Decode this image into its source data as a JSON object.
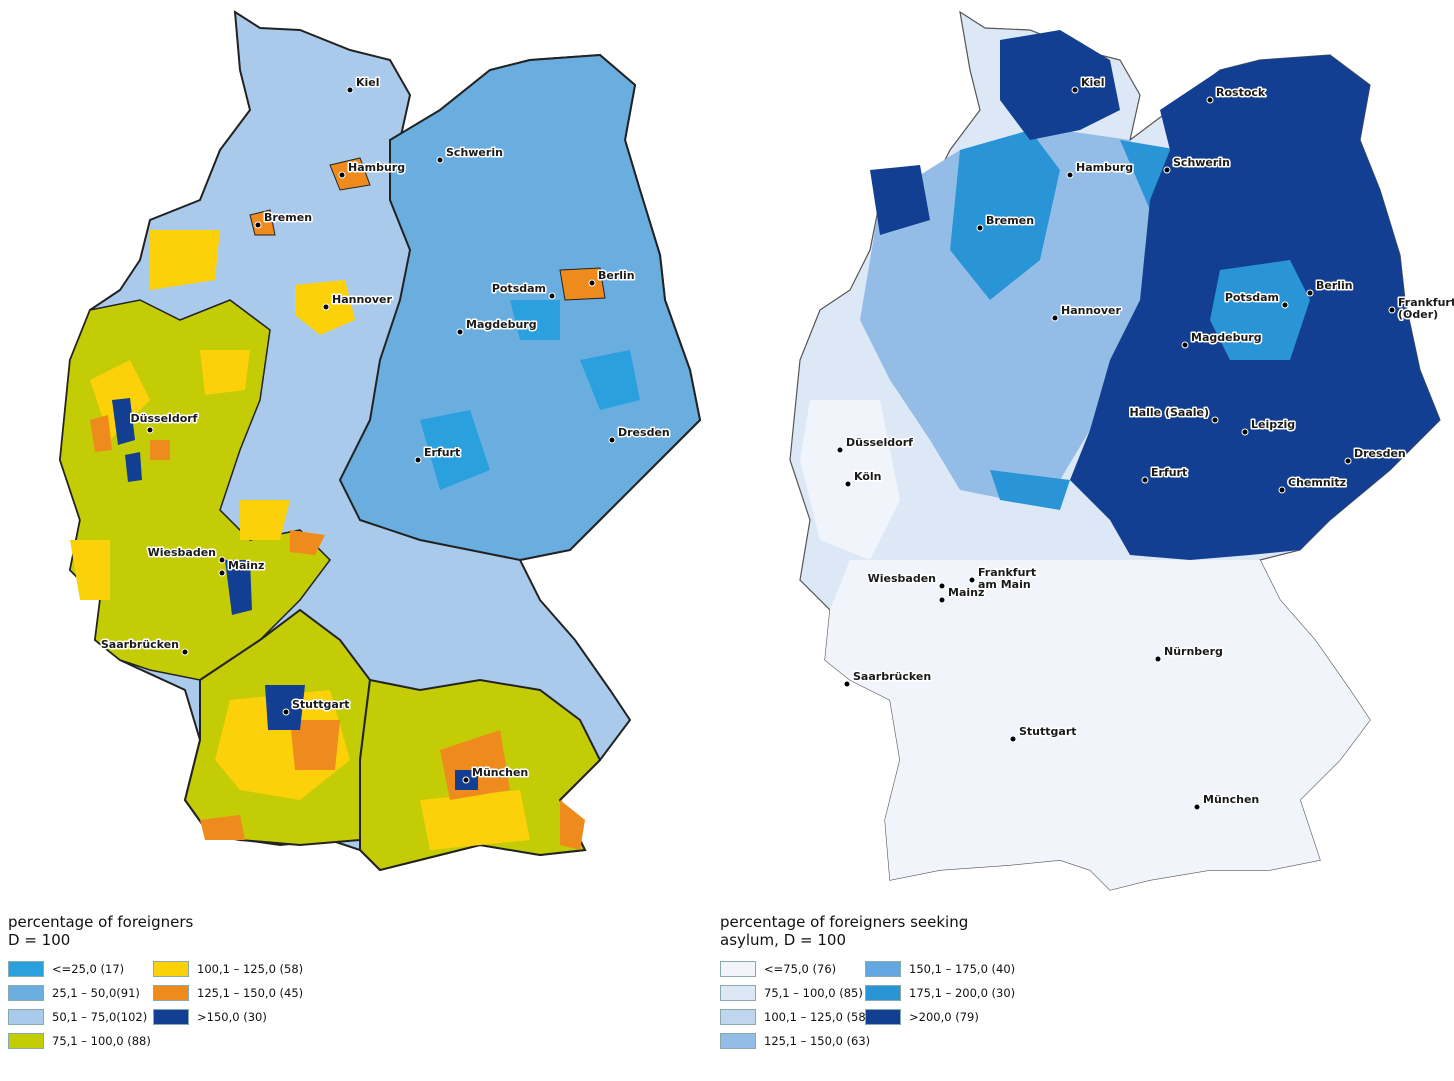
{
  "left_map": {
    "cities": [
      {
        "name": "Kiel"
      },
      {
        "name": "Hamburg"
      },
      {
        "name": "Schwerin"
      },
      {
        "name": "Bremen"
      },
      {
        "name": "Berlin"
      },
      {
        "name": "Potsdam"
      },
      {
        "name": "Hannover"
      },
      {
        "name": "Magdeburg"
      },
      {
        "name": "Düsseldorf"
      },
      {
        "name": "Erfurt"
      },
      {
        "name": "Dresden"
      },
      {
        "name": "Wiesbaden"
      },
      {
        "name": "Mainz"
      },
      {
        "name": "Saarbrücken"
      },
      {
        "name": "Stuttgart"
      },
      {
        "name": "München"
      }
    ],
    "legend": {
      "title_line1": "percentage of foreigners",
      "title_line2": "D = 100",
      "items": [
        {
          "label": "<=25,0 (17)",
          "color": "#2aa0de"
        },
        {
          "label": "25,1 – 50,0(91)",
          "color": "#6aaee0"
        },
        {
          "label": "50,1 – 75,0(102)",
          "color": "#aacaeb"
        },
        {
          "label": "75,1 – 100,0 (88)",
          "color": "#c3cc05"
        },
        {
          "label": "100,1 – 125,0 (58)",
          "color": "#fcd109"
        },
        {
          "label": "125,1 – 150,0 (45)",
          "color": "#ef8a1c"
        },
        {
          "label": ">150,0 (30)",
          "color": "#123f92"
        }
      ]
    }
  },
  "right_map": {
    "cities": [
      {
        "name": "Kiel"
      },
      {
        "name": "Rostock"
      },
      {
        "name": "Schwerin"
      },
      {
        "name": "Hamburg"
      },
      {
        "name": "Bremen"
      },
      {
        "name": "Hannover"
      },
      {
        "name": "Potsdam"
      },
      {
        "name": "Berlin"
      },
      {
        "name": "Frankfurt\n(Oder)"
      },
      {
        "name": "Magdeburg"
      },
      {
        "name": "Halle (Saale)"
      },
      {
        "name": "Leipzig"
      },
      {
        "name": "Dresden"
      },
      {
        "name": "Düsseldorf"
      },
      {
        "name": "Köln"
      },
      {
        "name": "Erfurt"
      },
      {
        "name": "Chemnitz"
      },
      {
        "name": "Frankfurt\nam Main"
      },
      {
        "name": "Wiesbaden"
      },
      {
        "name": "Mainz"
      },
      {
        "name": "Nürnberg"
      },
      {
        "name": "Saarbrücken"
      },
      {
        "name": "Stuttgart"
      },
      {
        "name": "München"
      }
    ],
    "legend": {
      "title_line1": "percentage of foreigners seeking",
      "title_line2": "asylum, D = 100",
      "items": [
        {
          "label": "<=75,0 (76)",
          "color": "#f1f5fb"
        },
        {
          "label": "75,1 – 100,0 (85)",
          "color": "#dde8f6"
        },
        {
          "label": "100,1 – 125,0 (58)",
          "color": "#c0d6ef"
        },
        {
          "label": "125,1 – 150,0 (63)",
          "color": "#93bde6"
        },
        {
          "label": "150,1 – 175,0 (40)",
          "color": "#62a7df"
        },
        {
          "label": "175,1 – 200,0 (30)",
          "color": "#2a95d6"
        },
        {
          "label": ">200,0 (79)",
          "color": "#123f92"
        }
      ]
    }
  }
}
